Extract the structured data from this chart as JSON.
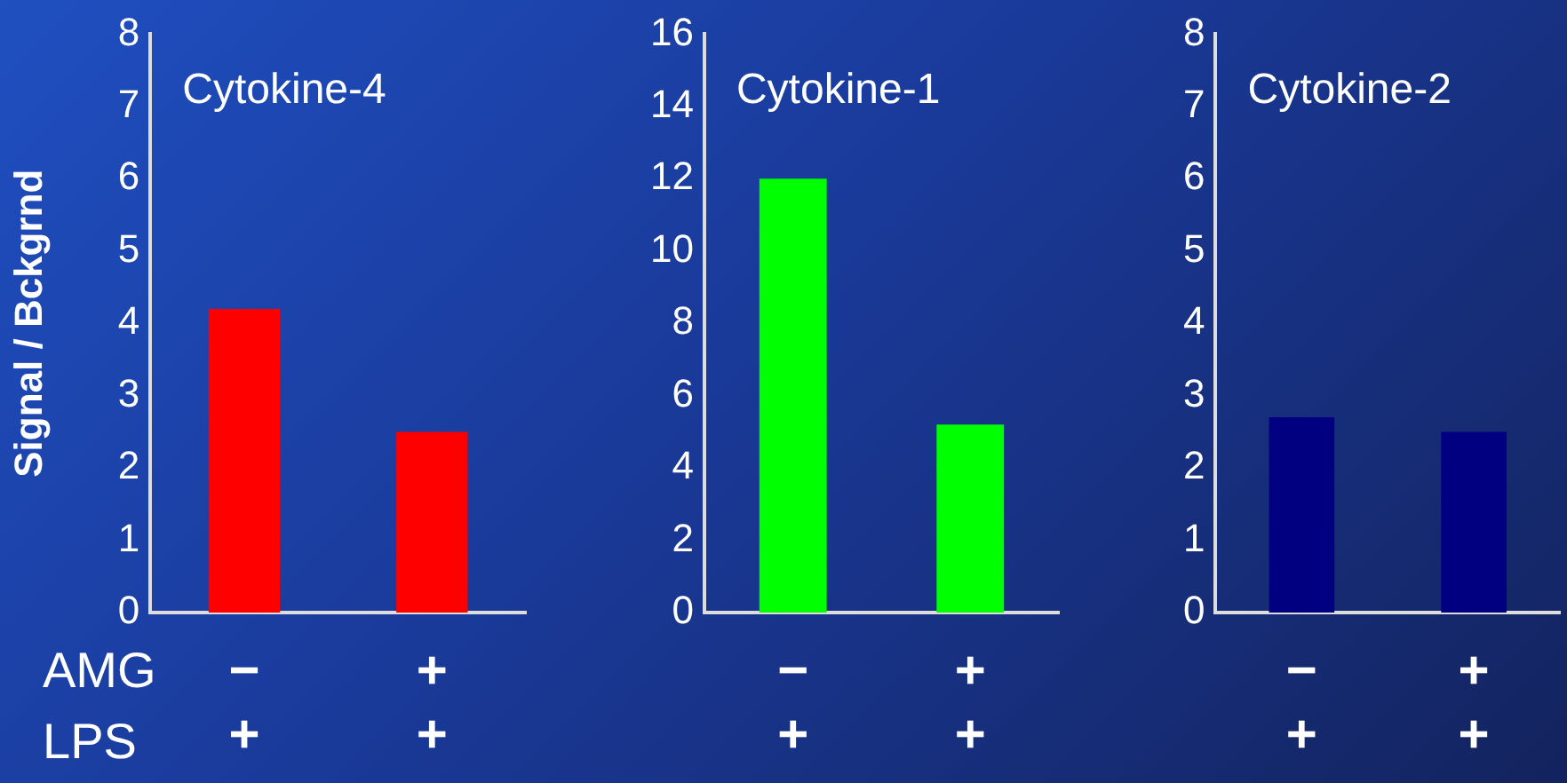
{
  "chart_data": [
    {
      "type": "bar",
      "title": "Cytokine-4",
      "ylabel": "Signal / Bckgrnd",
      "categories": [
        "−\n+",
        "+\n+"
      ],
      "values": [
        4.2,
        2.5
      ],
      "color": "#ff0000",
      "ylim": [
        0,
        8
      ],
      "yticks": [
        0,
        1,
        2,
        3,
        4,
        5,
        6,
        7,
        8
      ],
      "grid": false,
      "annotations": [
        "AMG",
        "LPS"
      ]
    },
    {
      "type": "bar",
      "title": "Cytokine-1",
      "categories": [
        "−\n+",
        "+\n+"
      ],
      "values": [
        12,
        5.2
      ],
      "color": "#00ff00",
      "ylim": [
        0,
        16
      ],
      "yticks": [
        0,
        2,
        4,
        6,
        8,
        10,
        12,
        14,
        16
      ],
      "grid": false
    },
    {
      "type": "bar",
      "title": "Cytokine-2",
      "categories": [
        "−\n+",
        "+\n+"
      ],
      "values": [
        2.7,
        2.5
      ],
      "color": "#000080",
      "ylim": [
        0,
        8
      ],
      "yticks": [
        0,
        1,
        2,
        3,
        4,
        5,
        6,
        7,
        8
      ],
      "grid": false
    }
  ]
}
